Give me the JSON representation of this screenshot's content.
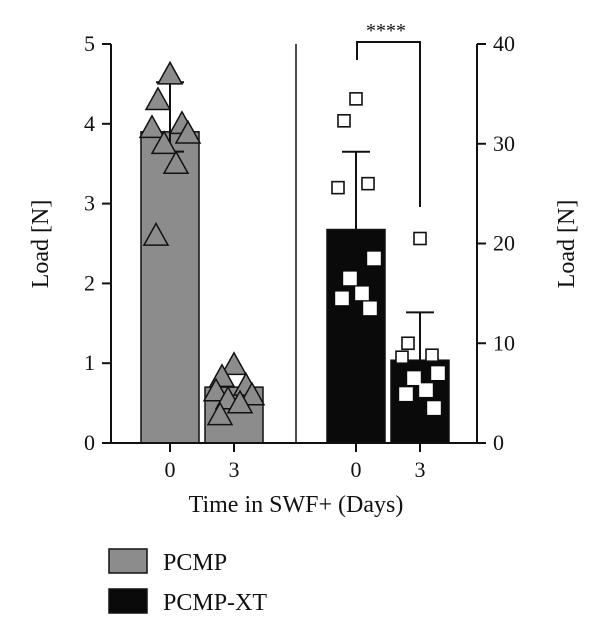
{
  "chart_data": {
    "type": "bar",
    "xlabel": "Time in SWF+ (Days)",
    "ylabel_left": "Load [N]",
    "ylabel_right": "Load [N]",
    "left_axis": {
      "ylim": [
        0,
        5
      ],
      "ticks": [
        "0",
        "1",
        "2",
        "3",
        "4",
        "5"
      ]
    },
    "right_axis": {
      "ylim": [
        0,
        40
      ],
      "ticks": [
        "0",
        "10",
        "20",
        "30",
        "40"
      ]
    },
    "grid": false,
    "legend_position": "bottom-left",
    "series": [
      {
        "name": "PCMP",
        "axis": "left",
        "color": "#8c8c8c",
        "marker": "triangle",
        "categories": [
          "0",
          "3"
        ],
        "values": [
          3.9,
          0.7
        ],
        "error": [
          0.62,
          0.0
        ],
        "points": [
          [
            4.62,
            4.3,
            4.0,
            3.95,
            3.88,
            3.75,
            3.5,
            2.6
          ],
          [
            0.98,
            0.83,
            0.72,
            0.65,
            0.6,
            0.55,
            0.5,
            0.35
          ]
        ]
      },
      {
        "name": "PCMP-XT",
        "axis": "right",
        "color": "#0a0a0a",
        "marker": "square",
        "categories": [
          "0",
          "3"
        ],
        "values": [
          21.4,
          8.3
        ],
        "error": [
          7.8,
          4.8
        ],
        "points": [
          [
            34.5,
            32.3,
            26.0,
            25.6,
            18.5,
            16.5,
            15.0,
            14.5,
            13.5
          ],
          [
            20.5,
            10.0,
            8.8,
            8.6,
            7.0,
            6.5,
            5.3,
            4.9,
            3.5
          ]
        ]
      }
    ],
    "significance": {
      "label": "****",
      "between": [
        "PCMP-XT 0",
        "PCMP-XT 3"
      ]
    }
  }
}
